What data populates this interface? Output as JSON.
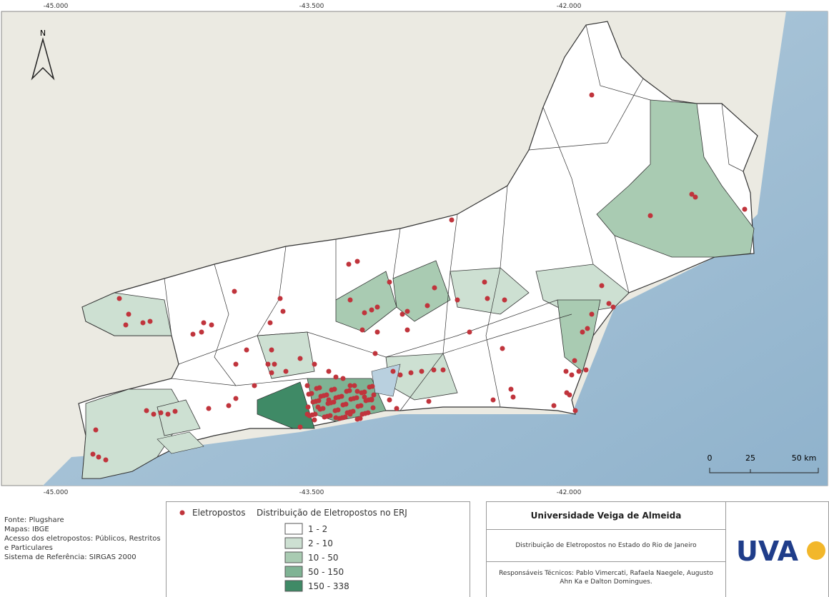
{
  "map": {
    "coords_top": [
      "-45.000",
      "-43.500",
      "-42.000"
    ],
    "coords_bottom": [
      "-45.000",
      "-43.500",
      "-42.000"
    ],
    "north": "N",
    "scale": [
      "0",
      "25",
      "50 km"
    ]
  },
  "notes": [
    "Fonte: Plugshare",
    "Mapas: IBGE",
    "Acesso dos eletropostos: Públicos, Restritos e Particulares",
    "Sistema de Referência: SIRGAS 2000"
  ],
  "legend": {
    "points": "Eletropostos",
    "title": "Distribuição de Eletropostos no ERJ",
    "classes": [
      "1 - 2",
      "2 - 10",
      "10 - 50",
      "50 - 150",
      "150 - 338"
    ]
  },
  "title_box": {
    "institution": "Universidade Veiga de Almeida",
    "subtitle": "Distribuição de Eletropostos no Estado do Rio de Janeiro",
    "credits": "Responsáveis Técnicos: Pablo Vimercati, Rafaela Naegele, Augusto Ahn Ka e Dalton Domingues.",
    "logo": "UVA"
  }
}
